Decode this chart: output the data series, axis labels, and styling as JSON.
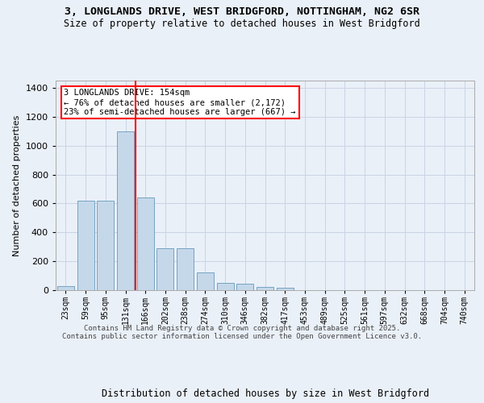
{
  "title_line1": "3, LONGLANDS DRIVE, WEST BRIDGFORD, NOTTINGHAM, NG2 6SR",
  "title_line2": "Size of property relative to detached houses in West Bridgford",
  "xlabel": "Distribution of detached houses by size in West Bridgford",
  "ylabel": "Number of detached properties",
  "footer_line1": "Contains HM Land Registry data © Crown copyright and database right 2025.",
  "footer_line2": "Contains public sector information licensed under the Open Government Licence v3.0.",
  "annotation_title": "3 LONGLANDS DRIVE: 154sqm",
  "annotation_line1": "← 76% of detached houses are smaller (2,172)",
  "annotation_line2": "23% of semi-detached houses are larger (667) →",
  "property_size_idx": 4,
  "bar_color": "#c5d8ea",
  "bar_edge_color": "#6699bb",
  "vline_color": "red",
  "background_color": "#eaf0f8",
  "grid_color": "#c8d4e4",
  "categories": [
    "23sqm",
    "59sqm",
    "95sqm",
    "131sqm",
    "166sqm",
    "202sqm",
    "238sqm",
    "274sqm",
    "310sqm",
    "346sqm",
    "382sqm",
    "417sqm",
    "453sqm",
    "489sqm",
    "525sqm",
    "561sqm",
    "597sqm",
    "632sqm",
    "668sqm",
    "704sqm",
    "740sqm"
  ],
  "values": [
    30,
    620,
    620,
    1100,
    640,
    290,
    290,
    125,
    50,
    45,
    25,
    15,
    0,
    0,
    0,
    0,
    0,
    0,
    0,
    0,
    0
  ],
  "ylim": [
    0,
    1450
  ],
  "yticks": [
    0,
    200,
    400,
    600,
    800,
    1000,
    1200,
    1400
  ],
  "n_bars": 21
}
